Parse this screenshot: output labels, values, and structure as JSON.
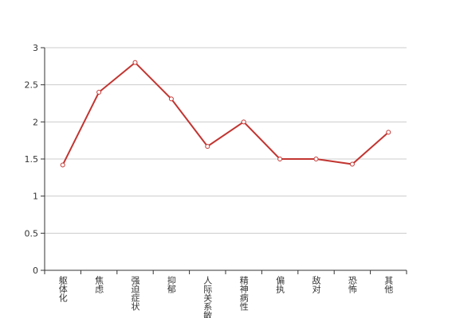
{
  "chart_data": {
    "type": "line",
    "categories": [
      "躯体化",
      "焦虑",
      "强迫症状",
      "抑郁",
      "人际关系敏感",
      "精神病性",
      "偏执",
      "敌对",
      "恐怖",
      "其他"
    ],
    "values": [
      1.42,
      2.4,
      2.8,
      2.31,
      1.67,
      2.0,
      1.5,
      1.5,
      1.43,
      1.86
    ],
    "color": "#c23531",
    "ylim": [
      0,
      3
    ],
    "yticks": [
      0,
      0.5,
      1,
      1.5,
      2,
      2.5,
      3
    ],
    "grid": true
  }
}
